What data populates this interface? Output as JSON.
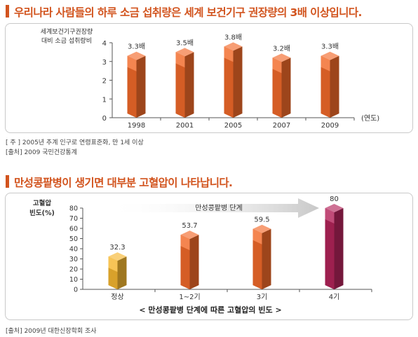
{
  "section1": {
    "title": "우리나라 사람들의 하루 소금 섭취량은 세계 보건기구 권장량의 3배 이상입니다.",
    "note1": "[ 주 ] 2005년 추계 인구로 연령표준화, 만 1세 이상",
    "note2": "[출처] 2009 국민건강통계"
  },
  "section2": {
    "title": "만성콩팥병이 생기면 대부분 고혈압이 나타납니다.",
    "caption": "< 만성콩팥병 단계에 따른 고혈압의 빈도 >",
    "source": "[출처] 2009년 대한신장학회 조사"
  },
  "colors": {
    "title": "#d2541e",
    "bar_orange": "#f26a2a",
    "bar_yellow": "#f5b731",
    "bar_magenta": "#b3245a",
    "arrow": "#c8c8c8"
  },
  "chart_data": [
    {
      "type": "bar",
      "ylabel_line1": "세계보건기구권장량",
      "ylabel_line2": "대비 소금 섭취량비",
      "xlabel": "(연도)",
      "categories": [
        "1998",
        "2001",
        "2005",
        "2007",
        "2009"
      ],
      "values": [
        3.3,
        3.5,
        3.8,
        3.2,
        3.3
      ],
      "value_labels": [
        "3.3배",
        "3.5배",
        "3.8배",
        "3.2배",
        "3.3배"
      ],
      "ylim": [
        0,
        4
      ],
      "yticks": [
        "0",
        "1",
        "2",
        "3",
        "4"
      ]
    },
    {
      "type": "bar",
      "ylabel_line1": "고혈압",
      "ylabel_line2": "빈도(%)",
      "arrow_label": "만성콩팥병 단계",
      "categories": [
        "정상",
        "1~2기",
        "3기",
        "4기"
      ],
      "values": [
        32.3,
        53.7,
        59.5,
        80
      ],
      "value_labels": [
        "32.3",
        "53.7",
        "59.5",
        "80"
      ],
      "ylim": [
        0,
        80
      ],
      "yticks": [
        "0",
        "10",
        "20",
        "30",
        "40",
        "50",
        "60",
        "70",
        "80"
      ]
    }
  ]
}
